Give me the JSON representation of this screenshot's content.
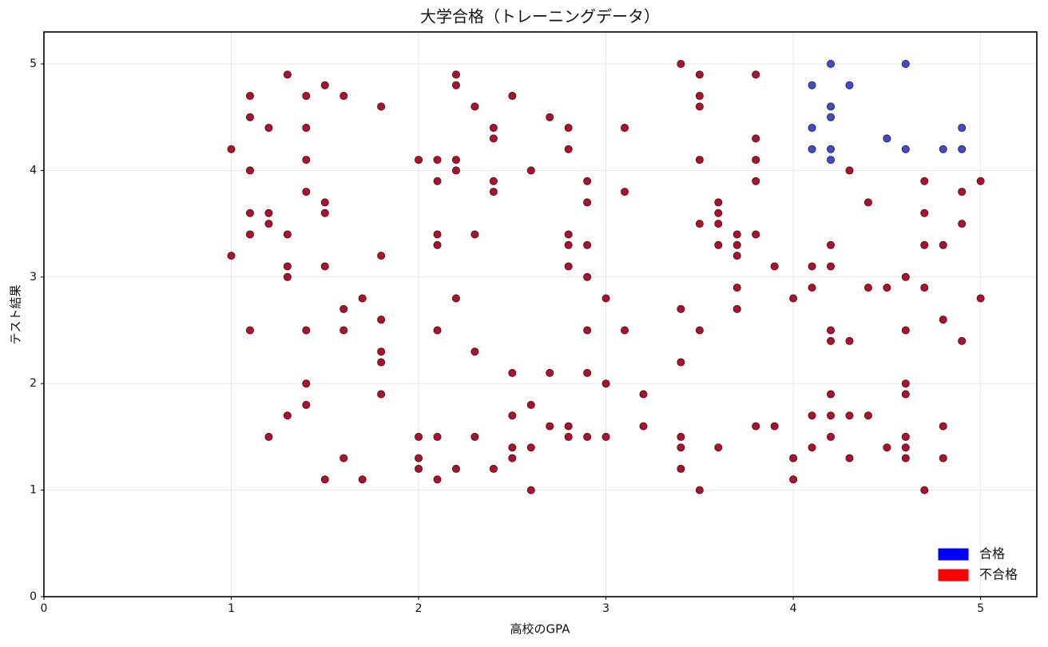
{
  "chart_data": {
    "type": "scatter",
    "title": "大学合格（トレーニングデータ）",
    "x_label": "高校のGPA",
    "y_label": "テスト結果",
    "xlim": [
      0,
      5.3
    ],
    "ylim": [
      0,
      5.3
    ],
    "xticks": [
      0,
      1,
      2,
      3,
      4,
      5
    ],
    "yticks": [
      0,
      1,
      2,
      3,
      4,
      5
    ],
    "grid": true,
    "legend": "lower right",
    "series": [
      {
        "name": "合格",
        "color": "#3a4fcb",
        "legend_color": "#0000ff",
        "x": [
          4.1,
          4.1,
          4.1,
          4.2,
          4.2,
          4.2,
          4.2,
          4.2,
          4.3,
          4.5,
          4.6,
          4.6,
          4.8,
          4.9,
          4.9
        ],
        "values": [
          4.8,
          4.4,
          4.2,
          5.0,
          4.6,
          4.5,
          4.2,
          4.1,
          4.8,
          4.3,
          5.0,
          4.2,
          4.2,
          4.4,
          4.2
        ]
      },
      {
        "name": "不合格",
        "color": "#b0112a",
        "legend_color": "#ff0000",
        "x": [
          1,
          1,
          1.1,
          1.1,
          1.1,
          1.1,
          1.1,
          1.1,
          1.2,
          1.2,
          1.2,
          1.2,
          1.3,
          1.3,
          1.3,
          1.3,
          1.3,
          1.4,
          1.4,
          1.4,
          1.4,
          1.4,
          1.4,
          1.4,
          1.5,
          1.5,
          1.5,
          1.5,
          1.5,
          1.6,
          1.6,
          1.6,
          1.6,
          1.7,
          1.7,
          1.8,
          1.8,
          1.8,
          1.8,
          1.8,
          1.8,
          2,
          2,
          2,
          2,
          2.1,
          2.1,
          2.1,
          2.1,
          2.1,
          2.1,
          2.1,
          2.2,
          2.2,
          2.2,
          2.2,
          2.2,
          2.2,
          2.3,
          2.3,
          2.3,
          2.3,
          2.4,
          2.4,
          2.4,
          2.4,
          2.4,
          2.5,
          2.5,
          2.5,
          2.5,
          2.5,
          2.6,
          2.6,
          2.6,
          2.6,
          2.7,
          2.7,
          2.7,
          2.8,
          2.8,
          2.8,
          2.8,
          2.8,
          2.8,
          2.8,
          2.9,
          2.9,
          2.9,
          2.9,
          2.9,
          2.9,
          2.9,
          3,
          3,
          3,
          3.1,
          3.1,
          3.1,
          3.2,
          3.2,
          3.4,
          3.4,
          3.4,
          3.4,
          3.4,
          3.4,
          3.5,
          3.5,
          3.5,
          3.5,
          3.5,
          3.5,
          3.5,
          3.6,
          3.6,
          3.6,
          3.6,
          3.6,
          3.7,
          3.7,
          3.7,
          3.7,
          3.7,
          3.8,
          3.8,
          3.8,
          3.8,
          3.8,
          3.8,
          3.9,
          3.9,
          4,
          4,
          4,
          4.1,
          4.1,
          4.1,
          4.1,
          4.2,
          4.2,
          4.2,
          4.2,
          4.2,
          4.2,
          4.2,
          4.3,
          4.3,
          4.3,
          4.3,
          4.4,
          4.4,
          4.4,
          4.5,
          4.5,
          4.6,
          4.6,
          4.6,
          4.6,
          4.6,
          4.6,
          4.6,
          4.7,
          4.7,
          4.7,
          4.7,
          4.7,
          4.8,
          4.8,
          4.8,
          4.8,
          4.9,
          4.9,
          4.9,
          5,
          5
        ],
        "values": [
          4.2,
          3.2,
          4.7,
          4.5,
          4.0,
          3.6,
          3.4,
          2.5,
          4.4,
          3.6,
          3.5,
          1.5,
          4.9,
          3.4,
          3.1,
          3.0,
          1.7,
          4.7,
          4.4,
          4.1,
          3.8,
          2.5,
          2.0,
          1.8,
          4.8,
          3.7,
          3.6,
          3.1,
          1.1,
          4.7,
          2.7,
          2.5,
          1.3,
          2.8,
          1.1,
          4.6,
          3.2,
          2.6,
          2.3,
          2.2,
          1.9,
          4.1,
          1.5,
          1.3,
          1.2,
          4.1,
          3.9,
          3.4,
          3.3,
          2.5,
          1.5,
          1.1,
          4.9,
          4.8,
          4.1,
          4.0,
          2.8,
          1.2,
          4.6,
          3.4,
          2.3,
          1.5,
          4.4,
          4.3,
          3.9,
          3.8,
          1.2,
          4.7,
          2.1,
          1.7,
          1.4,
          1.3,
          4.0,
          1.8,
          1.4,
          1.0,
          4.5,
          2.1,
          1.6,
          4.4,
          4.2,
          3.4,
          3.3,
          3.1,
          1.6,
          1.5,
          3.9,
          3.7,
          3.3,
          3.0,
          2.5,
          2.1,
          1.5,
          2.8,
          2.0,
          1.5,
          4.4,
          3.8,
          2.5,
          1.9,
          1.6,
          5.0,
          2.7,
          2.2,
          1.5,
          1.4,
          1.2,
          4.9,
          4.7,
          4.6,
          4.1,
          3.5,
          2.5,
          1.0,
          3.7,
          3.6,
          3.5,
          3.3,
          1.4,
          3.4,
          3.3,
          3.2,
          2.9,
          2.7,
          4.9,
          4.3,
          4.1,
          3.9,
          3.4,
          1.6,
          3.1,
          1.6,
          2.8,
          1.3,
          1.1,
          3.1,
          2.9,
          1.7,
          1.4,
          3.3,
          3.1,
          2.5,
          2.4,
          1.9,
          1.7,
          1.5,
          4.0,
          2.4,
          1.7,
          1.3,
          3.7,
          2.9,
          1.7,
          2.9,
          1.4,
          3.0,
          2.5,
          2.0,
          1.9,
          1.5,
          1.4,
          1.3,
          3.9,
          3.6,
          3.3,
          2.9,
          1.0,
          3.3,
          2.6,
          1.6,
          1.3,
          3.8,
          3.5,
          2.4,
          3.9,
          2.8
        ]
      }
    ]
  }
}
